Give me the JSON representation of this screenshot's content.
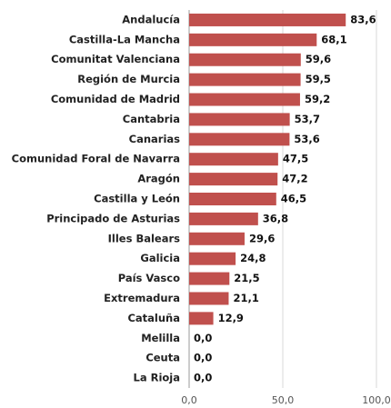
{
  "chart_data": {
    "type": "bar",
    "orientation": "horizontal",
    "categories": [
      "Andalucía",
      "Castilla-La Mancha",
      "Comunitat Valenciana",
      "Región de Murcia",
      "Comunidad de Madrid",
      "Cantabria",
      "Canarias",
      "Comunidad Foral de Navarra",
      "Aragón",
      "Castilla y León",
      "Principado de Asturias",
      "Illes Balears",
      "Galicia",
      "País Vasco",
      "Extremadura",
      "Cataluña",
      "Melilla",
      "Ceuta",
      "La Rioja"
    ],
    "values": [
      83.6,
      68.1,
      59.6,
      59.5,
      59.2,
      53.7,
      53.6,
      47.5,
      47.2,
      46.5,
      36.8,
      29.6,
      24.8,
      21.5,
      21.1,
      12.9,
      0,
      0,
      0
    ],
    "value_labels": [
      "83,6",
      "68,1",
      "59,6",
      "59,5",
      "59,2",
      "53,7",
      "53,6",
      "47,5",
      "47,2",
      "46,5",
      "36,8",
      "29,6",
      "24,8",
      "21,5",
      "21,1",
      "12,9",
      "0,0",
      "0,0",
      "0,0"
    ],
    "color": "#c0504d",
    "xlim": [
      0,
      100
    ],
    "xticks": [
      {
        "value": 0,
        "label": "0,0"
      },
      {
        "value": 50,
        "label": "50,0"
      },
      {
        "value": 100,
        "label": "100,0"
      }
    ],
    "grid": true
  }
}
